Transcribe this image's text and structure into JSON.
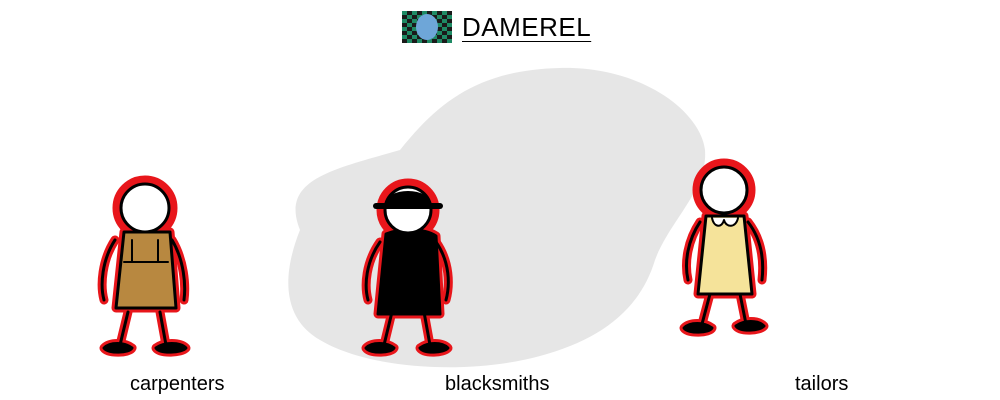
{
  "title": "DAMEREL",
  "groups": [
    {
      "label": "carpenters",
      "clothing_color": "#b88840"
    },
    {
      "label": "blacksmiths",
      "clothing_color": "#000000"
    },
    {
      "label": "tailors",
      "clothing_color": "#f5e39a"
    }
  ],
  "colors": {
    "outline_highlight": "#e8161b",
    "blob": "#e6e6e6",
    "flag_green": "#1e8a64",
    "flag_dark": "#1a1a1a",
    "flag_circle": "#6ea6d8"
  },
  "icons": {
    "flag": "checkered-flag-icon"
  }
}
